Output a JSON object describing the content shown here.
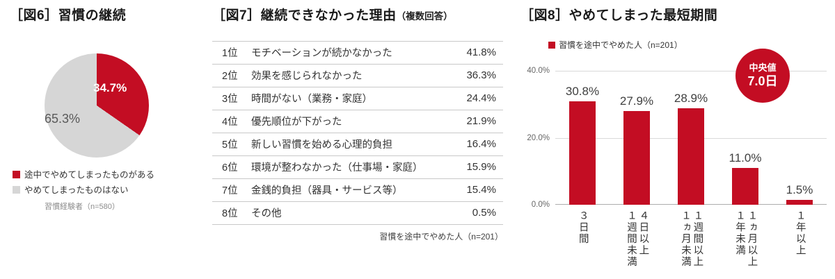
{
  "colors": {
    "accent": "#C30D23",
    "pie_gray": "#D6D6D6",
    "grid": "#D9D9D9",
    "axis": "#ADADAD"
  },
  "panels": {
    "fig6": {
      "title": "［図6］習慣の継続",
      "footnote": "習慣経験者（n=580）"
    },
    "fig7": {
      "title": "［図7］継続できなかった理由",
      "title_note": "（複数回答）",
      "footnote": "習慣を途中でやめた人（n=201）"
    },
    "fig8": {
      "title": "［図8］やめてしまった最短期間",
      "legend": "習慣を途中でやめた人（n=201）",
      "badge_label": "中央値",
      "badge_value": "7.0日"
    }
  },
  "chart_data": [
    {
      "type": "pie",
      "title": "［図6］習慣の継続",
      "labels": [
        "途中でやめてしまったものがある",
        "やめてしまったものはない"
      ],
      "values": [
        34.7,
        65.3
      ],
      "value_labels": [
        "34.7%",
        "65.3%"
      ],
      "colors": [
        "#C30D23",
        "#D6D6D6"
      ],
      "start": "top-clockwise",
      "note": "習慣経験者（n=580）"
    },
    {
      "type": "table",
      "title": "［図7］継続できなかった理由（複数回答）",
      "ranks": [
        "1位",
        "2位",
        "3位",
        "4位",
        "5位",
        "6位",
        "7位",
        "8位"
      ],
      "categories": [
        "モチベーションが続かなかった",
        "効果を感じられなかった",
        "時間がない（業務・家庭）",
        "優先順位が下がった",
        "新しい習慣を始める心理的負担",
        "環境が整わなかった（仕事場・家庭）",
        "金銭的負担（器具・サービス等）",
        "その他"
      ],
      "values": [
        41.8,
        36.3,
        24.4,
        21.9,
        16.4,
        15.9,
        15.4,
        0.5
      ],
      "value_labels": [
        "41.8%",
        "36.3%",
        "24.4%",
        "21.9%",
        "16.4%",
        "15.9%",
        "15.4%",
        "0.5%"
      ],
      "note": "習慣を途中でやめた人（n=201）"
    },
    {
      "type": "bar",
      "title": "［図8］やめてしまった最短期間",
      "legend": [
        "習慣を途中でやめた人（n=201）"
      ],
      "categories": [
        "３日間",
        "４日以上１週間未満",
        "１週間以上１ヵ月未満",
        "１ヵ月以上１年未満",
        "１年以上"
      ],
      "category_display": [
        "３日間",
        "４日以上\n１週間未満",
        "１週間以上\n１ヵ月未満",
        "１ヵ月以上\n１年未満",
        "１年以上"
      ],
      "values": [
        30.8,
        27.9,
        28.9,
        11.0,
        1.5
      ],
      "value_labels": [
        "30.8%",
        "27.9%",
        "28.9%",
        "11.0%",
        "1.5%"
      ],
      "ylim": [
        0,
        40
      ],
      "yticks": [
        "40.0%",
        "20.0%",
        "0.0%"
      ],
      "bar_color": "#C30D23",
      "grid": true,
      "legend_position": "top-left",
      "annotation": "中央値 7.0日"
    }
  ]
}
